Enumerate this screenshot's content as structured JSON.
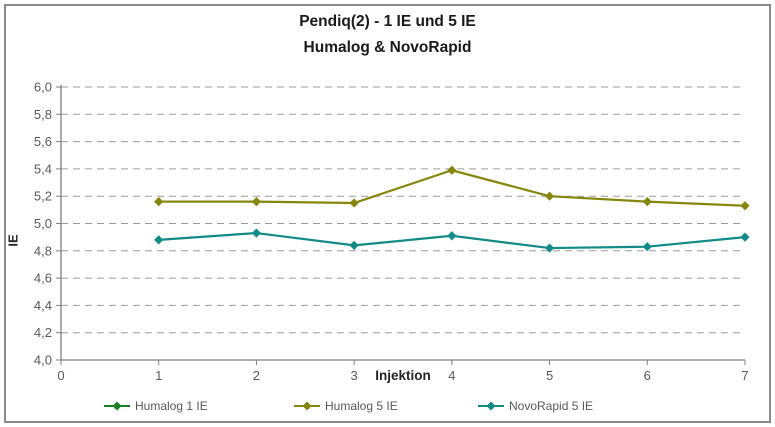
{
  "chart_data": {
    "type": "line",
    "title": "Pendiq(2) - 1 IE und 5 IE",
    "subtitle": "Humalog & NovoRapid",
    "xlabel": "Injektion",
    "ylabel": "IE",
    "xlim": [
      0,
      7
    ],
    "ylim": [
      4.0,
      6.0
    ],
    "x_ticks": [
      0,
      1,
      2,
      3,
      4,
      5,
      6,
      7
    ],
    "y_ticks": [
      4.0,
      4.2,
      4.4,
      4.6,
      4.8,
      5.0,
      5.2,
      5.4,
      5.6,
      5.8,
      6.0
    ],
    "y_tick_labels": [
      "4,0",
      "4,2",
      "4,4",
      "4,6",
      "4,8",
      "5,0",
      "5,2",
      "5,4",
      "5,6",
      "5,8",
      "6,0"
    ],
    "grid": "horizontal-dashed",
    "grid_color": "#9c9c9c",
    "axis_color": "#808080",
    "tick_label_color": "#595959",
    "legend_position": "bottom",
    "marker": "diamond",
    "x": [
      1,
      2,
      3,
      4,
      5,
      6,
      7
    ],
    "series": [
      {
        "name": "Humalog 1 IE",
        "color": "#17821f",
        "values": []
      },
      {
        "name": "Humalog 5 IE",
        "color": "#86860d",
        "values": [
          5.16,
          5.16,
          5.15,
          5.39,
          5.2,
          5.16,
          5.13
        ]
      },
      {
        "name": "NovoRapid 5 IE",
        "color": "#128b86",
        "values": [
          4.88,
          4.93,
          4.84,
          4.91,
          4.82,
          4.83,
          4.9
        ]
      }
    ]
  }
}
